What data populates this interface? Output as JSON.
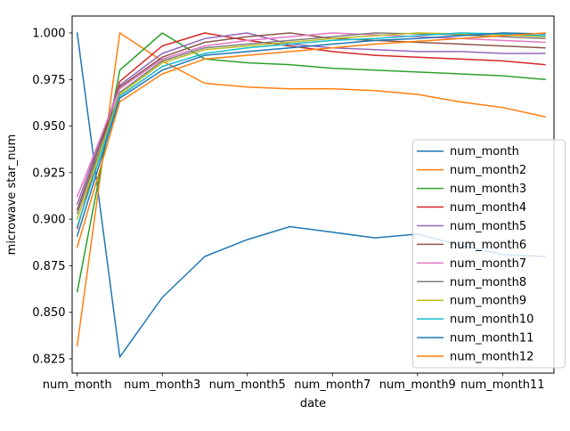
{
  "figure": {
    "background": "#ffffff",
    "axes_color": "#000000",
    "legend_border_color": "#cccccc",
    "legend_background": "#ffffff",
    "legend_opacity": 0.8
  },
  "chart_data": {
    "type": "line",
    "title": "",
    "xlabel": "date",
    "ylabel": "microwave star_num",
    "x_categories": [
      "num_month",
      "num_month2",
      "num_month3",
      "num_month4",
      "num_month5",
      "num_month6",
      "num_month7",
      "num_month8",
      "num_month9",
      "num_month10",
      "num_month11",
      "num_month12"
    ],
    "x_shown_tick_indices": [
      0,
      2,
      4,
      6,
      8,
      10
    ],
    "x_tick_labels": [
      "num_month",
      "num_month3",
      "num_month5",
      "num_month7",
      "num_month9",
      "num_month11"
    ],
    "y_ticks": [
      1.0,
      0.975,
      0.95,
      0.925,
      0.9,
      0.875,
      0.85,
      0.825
    ],
    "ylim": [
      0.817,
      1.009
    ],
    "grid": false,
    "legend_position": "center right",
    "legend_entries": [
      "num_month",
      "num_month2",
      "num_month3",
      "num_month4",
      "num_month5",
      "num_month6",
      "num_month7",
      "num_month8",
      "num_month9",
      "num_month10",
      "num_month11",
      "num_month12"
    ],
    "series": [
      {
        "name": "num_month",
        "color": "#1f77b4",
        "values": [
          1.0,
          0.826,
          0.858,
          0.88,
          0.889,
          0.896,
          0.893,
          0.89,
          0.892,
          0.886,
          0.881,
          0.88
        ]
      },
      {
        "name": "num_month2",
        "color": "#ff7f0e",
        "values": [
          0.832,
          1.0,
          0.985,
          0.973,
          0.971,
          0.97,
          0.97,
          0.969,
          0.967,
          0.963,
          0.96,
          0.955
        ]
      },
      {
        "name": "num_month3",
        "color": "#2ca02c",
        "values": [
          0.861,
          0.98,
          1.0,
          0.986,
          0.984,
          0.983,
          0.981,
          0.98,
          0.979,
          0.978,
          0.977,
          0.975
        ]
      },
      {
        "name": "num_month4",
        "color": "#d62728",
        "values": [
          0.895,
          0.974,
          0.993,
          1.0,
          0.996,
          0.993,
          0.99,
          0.988,
          0.987,
          0.986,
          0.985,
          0.983
        ]
      },
      {
        "name": "num_month5",
        "color": "#9467bd",
        "values": [
          0.908,
          0.972,
          0.989,
          0.997,
          1.0,
          0.994,
          0.992,
          0.991,
          0.99,
          0.99,
          0.989,
          0.989
        ]
      },
      {
        "name": "num_month6",
        "color": "#8c564b",
        "values": [
          0.905,
          0.971,
          0.987,
          0.995,
          0.998,
          1.0,
          0.997,
          0.996,
          0.995,
          0.994,
          0.993,
          0.992
        ]
      },
      {
        "name": "num_month7",
        "color": "#e377c2",
        "values": [
          0.912,
          0.97,
          0.986,
          0.993,
          0.996,
          0.998,
          1.0,
          0.999,
          0.998,
          0.997,
          0.996,
          0.995
        ]
      },
      {
        "name": "num_month8",
        "color": "#7f7f7f",
        "values": [
          0.903,
          0.968,
          0.985,
          0.992,
          0.994,
          0.996,
          0.998,
          1.0,
          0.9995,
          0.999,
          0.998,
          0.997
        ]
      },
      {
        "name": "num_month9",
        "color": "#bcbd22",
        "values": [
          0.9,
          0.967,
          0.984,
          0.991,
          0.993,
          0.995,
          0.997,
          0.9985,
          1.0,
          0.9995,
          0.999,
          0.998
        ]
      },
      {
        "name": "num_month10",
        "color": "#17becf",
        "values": [
          0.896,
          0.966,
          0.982,
          0.989,
          0.992,
          0.994,
          0.996,
          0.997,
          0.9985,
          1.0,
          0.9995,
          0.9985
        ]
      },
      {
        "name": "num_month11",
        "color": "#1f77b4",
        "values": [
          0.891,
          0.965,
          0.98,
          0.988,
          0.99,
          0.992,
          0.994,
          0.996,
          0.997,
          0.9985,
          1.0,
          0.9995
        ]
      },
      {
        "name": "num_month12",
        "color": "#ff7f0e",
        "values": [
          0.885,
          0.963,
          0.978,
          0.986,
          0.988,
          0.99,
          0.992,
          0.994,
          0.9955,
          0.997,
          0.9985,
          1.0
        ]
      }
    ]
  }
}
